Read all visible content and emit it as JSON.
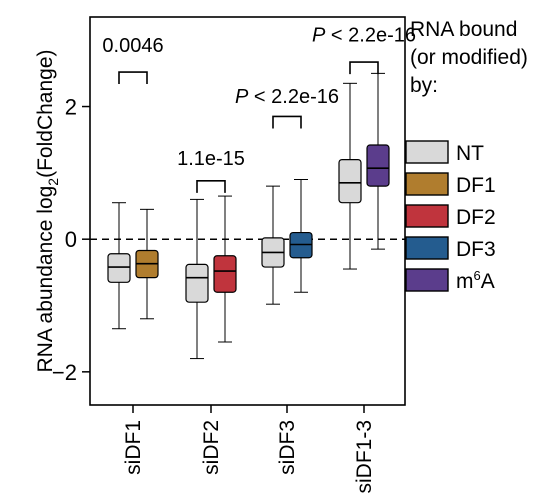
{
  "chart_data": {
    "type": "box",
    "ylabel_main": "RNA abundance log",
    "ylabel_sub": "2",
    "ylabel_tail": "(FoldChange)",
    "ylim": [
      -2.5,
      3.35
    ],
    "yticks": [
      {
        "value": 2,
        "label": "2"
      },
      {
        "value": 0,
        "label": "0"
      },
      {
        "value": -2,
        "label": "−2"
      }
    ],
    "reference_line": 0,
    "categories": [
      "siDF1",
      "siDF2",
      "siDF3",
      "siDF1-3"
    ],
    "series": [
      {
        "name": "NT",
        "color": "#d9d9d9"
      },
      {
        "name": "DF1",
        "color": "#b07d2e"
      },
      {
        "name": "DF2",
        "color": "#c0343d"
      },
      {
        "name": "DF3",
        "color": "#245c8f"
      },
      {
        "name": "m6A",
        "color": "#5b3d8c"
      }
    ],
    "legend": {
      "title_lines": [
        "RNA bound",
        "(or modified)",
        "by:"
      ],
      "entries": [
        {
          "label": "NT"
        },
        {
          "label": "DF1"
        },
        {
          "label": "DF2"
        },
        {
          "label": "DF3"
        },
        {
          "label": "m",
          "sup": "6",
          "tail": "A"
        }
      ],
      "placement": "right"
    },
    "boxes": [
      {
        "category": "siDF1",
        "series": "NT",
        "whisker_low": -1.35,
        "q1": -0.65,
        "median": -0.42,
        "q3": -0.22,
        "whisker_high": 0.55
      },
      {
        "category": "siDF1",
        "series": "DF1",
        "whisker_low": -1.2,
        "q1": -0.58,
        "median": -0.37,
        "q3": -0.17,
        "whisker_high": 0.45
      },
      {
        "category": "siDF2",
        "series": "NT",
        "whisker_low": -1.8,
        "q1": -0.95,
        "median": -0.58,
        "q3": -0.38,
        "whisker_high": 0.6
      },
      {
        "category": "siDF2",
        "series": "DF2",
        "whisker_low": -1.55,
        "q1": -0.8,
        "median": -0.48,
        "q3": -0.25,
        "whisker_high": 0.65
      },
      {
        "category": "siDF3",
        "series": "NT",
        "whisker_low": -0.98,
        "q1": -0.42,
        "median": -0.2,
        "q3": 0.02,
        "whisker_high": 0.8
      },
      {
        "category": "siDF3",
        "series": "DF3",
        "whisker_low": -0.8,
        "q1": -0.28,
        "median": -0.08,
        "q3": 0.1,
        "whisker_high": 0.9
      },
      {
        "category": "siDF1-3",
        "series": "NT",
        "whisker_low": -0.45,
        "q1": 0.55,
        "median": 0.85,
        "q3": 1.2,
        "whisker_high": 2.35
      },
      {
        "category": "siDF1-3",
        "series": "m6A",
        "whisker_low": -0.15,
        "q1": 0.8,
        "median": 1.07,
        "q3": 1.42,
        "whisker_high": 2.5
      }
    ],
    "comparisons": [
      {
        "category": "siDF1",
        "label": "0.0046",
        "italic_prefix": "",
        "y_bracket": 2.52,
        "y_text": 2.82
      },
      {
        "category": "siDF2",
        "label": "1.1e-15",
        "italic_prefix": "",
        "y_bracket": 0.88,
        "y_text": 1.12
      },
      {
        "category": "siDF3",
        "label": " < 2.2e-16",
        "italic_prefix": "P",
        "y_bracket": 1.85,
        "y_text": 2.05
      },
      {
        "category": "siDF1-3",
        "label": " < 2.2e-16",
        "italic_prefix": "P",
        "y_bracket": 2.67,
        "y_text": 2.98
      }
    ]
  }
}
